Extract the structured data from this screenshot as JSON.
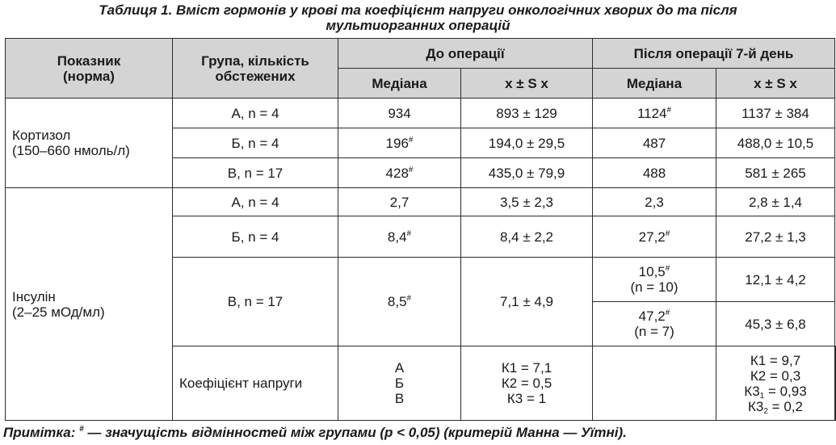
{
  "caption": {
    "line1": "Таблиця 1.  Вміст гормонів у крові та коефіцієнт напруги онкологічних хворих до та після",
    "line2": "мультиорганних операцій"
  },
  "headers": {
    "indicator": "Показник",
    "norm": "(норма)",
    "group_line1": "Група, кількість",
    "group_line2": "обстежених",
    "before": "До операції",
    "after": "Після операції 7-й день",
    "median": "Медіана",
    "mean_sd": "x ± S x"
  },
  "sup_mark": "#",
  "groups": {
    "a4": "А, n = 4",
    "b4": "Б, n = 4",
    "v17": "В, n = 17"
  },
  "cortisol": {
    "label_line1": "Кортизол",
    "label_line2": "(150–660 нмоль/л)",
    "a": {
      "before_median": "934",
      "before_mean": "893 ± 129",
      "after_median": "1124",
      "after_mean": "1137 ± 384"
    },
    "b": {
      "before_median": "196",
      "before_mean": "194,0 ± 29,5",
      "after_median": "487",
      "after_mean": "488,0 ± 10,5"
    },
    "v": {
      "before_median": "428",
      "before_mean": "435,0 ± 79,9",
      "after_median": "488",
      "after_mean": "581 ± 265"
    }
  },
  "insulin": {
    "label_line1": "Інсулін",
    "label_line2": "(2–25 мОд/мл)",
    "a": {
      "before_median": "2,7",
      "before_mean": "3,5 ± 2,3",
      "after_median": "2,3",
      "after_mean": "2,8 ± 1,4"
    },
    "b": {
      "before_median": "8,4",
      "before_mean": "8,4 ± 2,2",
      "after_median": "27,2",
      "after_mean": "27,2 ± 1,3"
    },
    "v": {
      "before_median": "8,5",
      "before_mean": "7,1 ± 4,9",
      "after1_median": "10,5",
      "after1_n": "(n = 10)",
      "after1_mean": "12,1 ± 4,2",
      "after2_median": "47,2",
      "after2_n": "(n = 7)",
      "after2_mean": "45,3 ± 6,8"
    }
  },
  "stress": {
    "label": "Коефіцієнт напруги",
    "groups": [
      "А",
      "Б",
      "В"
    ],
    "before": [
      "К1 = 7,1",
      "К2 = 0,5",
      "К3 = 1"
    ],
    "after": {
      "k1": "К1 = 9,7",
      "k2": "К2 = 0,3",
      "k3_1_base": "К3",
      "k3_1_sub": "1",
      "k3_1_val": " = 0,93",
      "k3_2_base": "К3",
      "k3_2_sub": "2",
      "k3_2_val": " = 0,2"
    }
  },
  "note": {
    "prefix": "Примітка:  ",
    "mark": "#",
    "text": " — значущість відмінностей між групами (p < 0,05) (критерій Манна — Уїтні)."
  }
}
